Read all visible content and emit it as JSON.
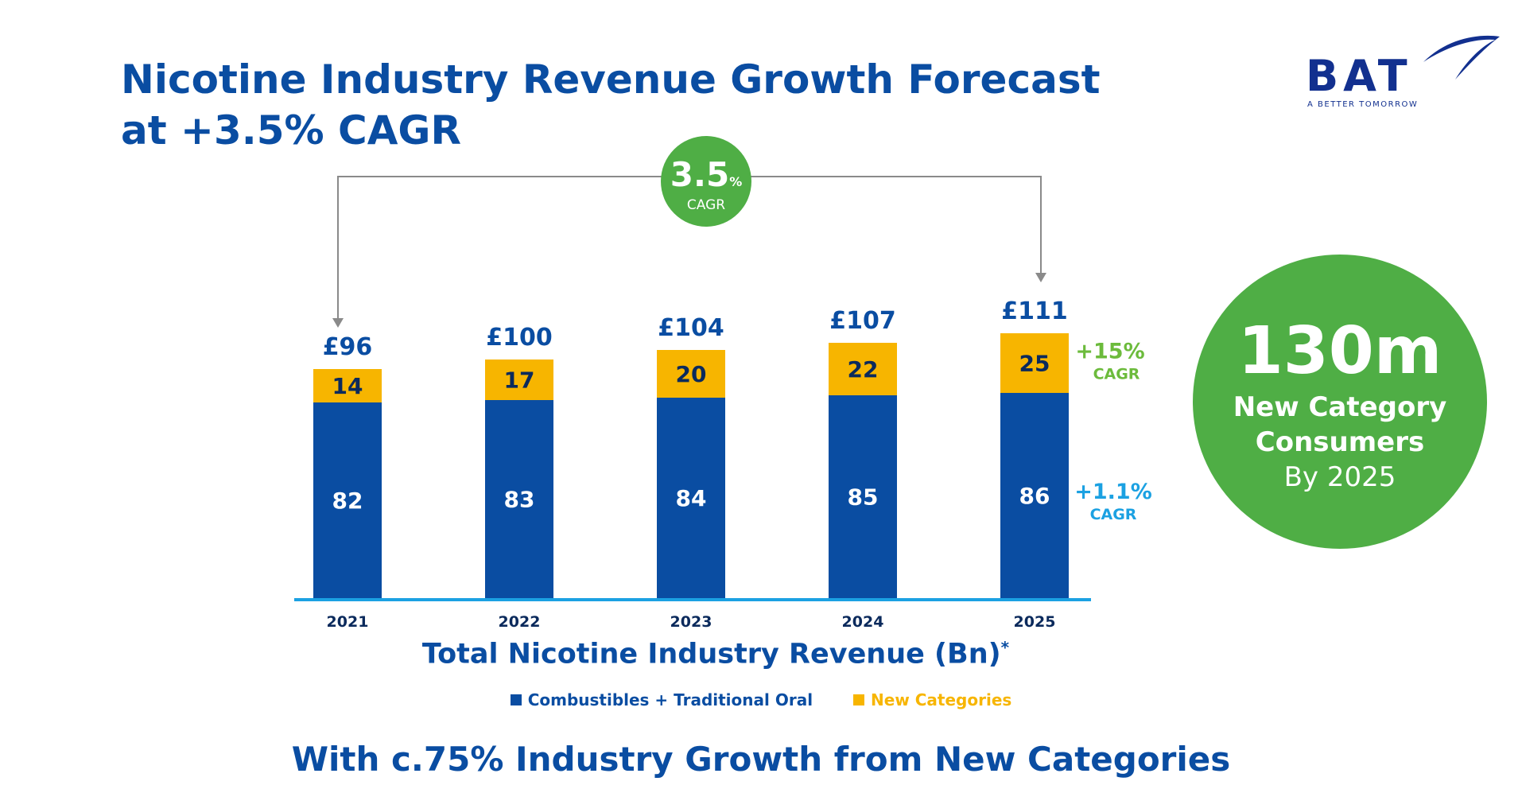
{
  "header": {
    "title_line1": "Nicotine Industry Revenue Growth Forecast",
    "title_line2": "at +3.5% CAGR"
  },
  "logo": {
    "wordmark": "BAT",
    "tagline": "A BETTER TOMORROW"
  },
  "colors": {
    "title_blue": "#0a4da2",
    "combustibles": "#0a4da2",
    "new_categories": "#f7b500",
    "baseline": "#1ba1e2",
    "green": "#4fae45",
    "cagr_green": "#6cbb3c",
    "cagr_cyan": "#1ba1e2"
  },
  "chart_data": {
    "type": "bar",
    "stacked": true,
    "categories": [
      "2021",
      "2022",
      "2023",
      "2024",
      "2025"
    ],
    "series": [
      {
        "name": "Combustibles + Traditional Oral",
        "values": [
          82,
          83,
          84,
          85,
          86
        ],
        "color": "#0a4da2"
      },
      {
        "name": "New Categories",
        "values": [
          14,
          17,
          20,
          22,
          25
        ],
        "color": "#f7b500"
      }
    ],
    "totals": [
      "£96",
      "£100",
      "£104",
      "£107",
      "£111"
    ],
    "xlabel": "Total Nicotine Industry Revenue (Bn)",
    "xlabel_mark": "*",
    "overall_cagr": {
      "value": "3.5",
      "unit": "%",
      "label": "CAGR"
    },
    "series_cagr": [
      {
        "value": "+15%",
        "label": "CAGR",
        "color": "#6cbb3c"
      },
      {
        "value": "+1.1%",
        "label": "CAGR",
        "color": "#1ba1e2"
      }
    ],
    "legend_position": "bottom",
    "grid": false
  },
  "badge": {
    "big": "130m",
    "line1": "New Category",
    "line2": "Consumers",
    "line3": "By 2025"
  },
  "footer": "With c.75% Industry Growth from New Categories"
}
